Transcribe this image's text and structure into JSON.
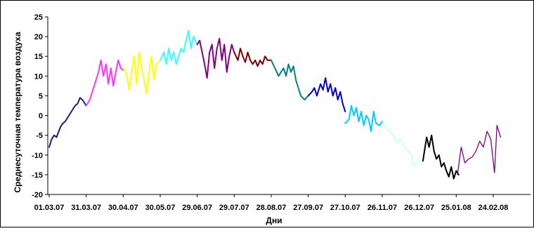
{
  "chart_data": {
    "type": "line",
    "title": "",
    "xlabel": "Дни",
    "ylabel": "Среднесуточная температура воздуха",
    "ylim": [
      -20,
      25
    ],
    "yticks": [
      -20,
      -15,
      -10,
      -5,
      0,
      5,
      10,
      15,
      20,
      25
    ],
    "xtick_labels": [
      "01.03.07",
      "31.03.07",
      "30.04.07",
      "30.05.07",
      "29.06.07",
      "29.07.07",
      "28.08.07",
      "27.09.07",
      "27.10.07",
      "26.11.07",
      "26.12.07",
      "25.01.08",
      "24.02.08"
    ],
    "xticks": [
      "2007-03-01",
      "2007-03-31",
      "2007-04-30",
      "2007-05-30",
      "2007-06-29",
      "2007-07-29",
      "2007-08-28",
      "2007-09-27",
      "2007-10-27",
      "2007-11-26",
      "2007-12-26",
      "2008-01-25",
      "2008-02-24"
    ],
    "grid": false,
    "series": [
      {
        "color": "#1a1a7a",
        "x": [
          "2007-03-01",
          "2007-03-03",
          "2007-03-05",
          "2007-03-07",
          "2007-03-10",
          "2007-03-12",
          "2007-03-14",
          "2007-03-17",
          "2007-03-19",
          "2007-03-22",
          "2007-03-24",
          "2007-03-26",
          "2007-03-28",
          "2007-03-31"
        ],
        "y": [
          -8,
          -6,
          -5,
          -5.5,
          -3,
          -2,
          -1.5,
          0,
          1,
          2.5,
          3,
          4.5,
          4,
          2.5
        ]
      },
      {
        "color": "#ff33ff",
        "x": [
          "2007-03-31",
          "2007-04-03",
          "2007-04-05",
          "2007-04-08",
          "2007-04-10",
          "2007-04-12",
          "2007-04-14",
          "2007-04-16",
          "2007-04-18",
          "2007-04-20",
          "2007-04-22",
          "2007-04-24",
          "2007-04-26",
          "2007-04-28",
          "2007-04-30"
        ],
        "y": [
          2.5,
          4,
          6,
          9,
          11,
          14,
          10,
          13,
          8,
          12,
          7.5,
          11,
          14,
          12,
          11.5
        ]
      },
      {
        "color": "#ffff00",
        "x": [
          "2007-05-01",
          "2007-05-03",
          "2007-05-05",
          "2007-05-07",
          "2007-05-09",
          "2007-05-11",
          "2007-05-13",
          "2007-05-15",
          "2007-05-17",
          "2007-05-19",
          "2007-05-21",
          "2007-05-23",
          "2007-05-25",
          "2007-05-27",
          "2007-05-30"
        ],
        "y": [
          12,
          10,
          6.5,
          11,
          15,
          8,
          16,
          12,
          9,
          5.5,
          11,
          15,
          9,
          13,
          14
        ]
      },
      {
        "color": "#33ffff",
        "x": [
          "2007-05-30",
          "2007-06-02",
          "2007-06-04",
          "2007-06-06",
          "2007-06-08",
          "2007-06-10",
          "2007-06-12",
          "2007-06-14",
          "2007-06-16",
          "2007-06-18",
          "2007-06-20",
          "2007-06-22",
          "2007-06-24",
          "2007-06-26",
          "2007-06-29"
        ],
        "y": [
          14,
          16,
          13,
          17,
          14,
          16,
          13,
          15,
          17,
          16,
          19,
          21.5,
          17,
          20,
          18
        ]
      },
      {
        "color": "#800080",
        "x": [
          "2007-06-29",
          "2007-07-01",
          "2007-07-03",
          "2007-07-05",
          "2007-07-07",
          "2007-07-09",
          "2007-07-11",
          "2007-07-13",
          "2007-07-15",
          "2007-07-17",
          "2007-07-19",
          "2007-07-21",
          "2007-07-23",
          "2007-07-25",
          "2007-07-27",
          "2007-07-29"
        ],
        "y": [
          18,
          19,
          16,
          13,
          9.5,
          16,
          18,
          12,
          17,
          19.5,
          14,
          18,
          11,
          15,
          18,
          16
        ]
      },
      {
        "color": "#800000",
        "x": [
          "2007-07-29",
          "2007-08-01",
          "2007-08-03",
          "2007-08-05",
          "2007-08-07",
          "2007-08-09",
          "2007-08-11",
          "2007-08-13",
          "2007-08-15",
          "2007-08-17",
          "2007-08-19",
          "2007-08-21",
          "2007-08-23",
          "2007-08-25",
          "2007-08-28"
        ],
        "y": [
          16,
          14,
          17,
          15,
          13.5,
          16,
          14,
          13,
          14,
          12.5,
          14,
          13,
          15,
          14,
          14
        ]
      },
      {
        "color": "#008080",
        "x": [
          "2007-08-28",
          "2007-08-31",
          "2007-09-03",
          "2007-09-05",
          "2007-09-07",
          "2007-09-09",
          "2007-09-11",
          "2007-09-13",
          "2007-09-15",
          "2007-09-17",
          "2007-09-19",
          "2007-09-21",
          "2007-09-24",
          "2007-09-27"
        ],
        "y": [
          14,
          12,
          10,
          11,
          12,
          10,
          13,
          11,
          12.5,
          9,
          7,
          5,
          4,
          5
        ]
      },
      {
        "color": "#0000cc",
        "x": [
          "2007-09-27",
          "2007-09-30",
          "2007-10-02",
          "2007-10-04",
          "2007-10-07",
          "2007-10-09",
          "2007-10-11",
          "2007-10-13",
          "2007-10-15",
          "2007-10-17",
          "2007-10-19",
          "2007-10-21",
          "2007-10-23",
          "2007-10-25",
          "2007-10-27"
        ],
        "y": [
          5,
          6,
          7,
          5,
          8,
          6.5,
          9.5,
          6,
          8,
          5,
          7,
          4,
          6,
          3,
          1
        ]
      },
      {
        "color": "#00ccff",
        "x": [
          "2007-10-27",
          "2007-10-30",
          "2007-11-01",
          "2007-11-03",
          "2007-11-05",
          "2007-11-07",
          "2007-11-09",
          "2007-11-11",
          "2007-11-13",
          "2007-11-15",
          "2007-11-17",
          "2007-11-19",
          "2007-11-21",
          "2007-11-24",
          "2007-11-26"
        ],
        "y": [
          -2,
          -1,
          2.5,
          0,
          2,
          -1.5,
          1,
          -2.5,
          0,
          -1,
          -4,
          1,
          -2,
          -2.5,
          -1.5
        ]
      },
      {
        "color": "#ccffff",
        "x": [
          "2007-11-26",
          "2007-11-29",
          "2007-12-02",
          "2007-12-05",
          "2007-12-08",
          "2007-12-11",
          "2007-12-14",
          "2007-12-17",
          "2007-12-20",
          "2007-12-22",
          "2007-12-24",
          "2007-12-26"
        ],
        "y": [
          -2,
          -3,
          -4,
          -5,
          -7,
          -6,
          -8,
          -9,
          -10,
          -13,
          -12,
          -11
        ]
      },
      {
        "color": "#000000",
        "x": [
          "2007-12-29",
          "2008-01-01",
          "2008-01-03",
          "2008-01-05",
          "2008-01-07",
          "2008-01-09",
          "2008-01-11",
          "2008-01-13",
          "2008-01-15",
          "2008-01-17",
          "2008-01-19",
          "2008-01-21",
          "2008-01-23",
          "2008-01-25",
          "2008-01-27"
        ],
        "y": [
          -11.5,
          -5.5,
          -8,
          -5,
          -9,
          -11,
          -10,
          -13,
          -12,
          -14,
          -15.5,
          -13,
          -16,
          -14,
          -15
        ]
      },
      {
        "color": "#800080",
        "x": [
          "2008-01-26",
          "2008-01-29",
          "2008-02-01",
          "2008-02-04",
          "2008-02-07",
          "2008-02-10",
          "2008-02-13",
          "2008-02-16",
          "2008-02-19",
          "2008-02-22",
          "2008-02-25",
          "2008-02-27",
          "2008-03-01"
        ],
        "y": [
          -15,
          -8,
          -12,
          -11,
          -10.5,
          -9,
          -6.5,
          -8,
          -4,
          -6,
          -14.5,
          -2.5,
          -5.5
        ]
      }
    ]
  }
}
